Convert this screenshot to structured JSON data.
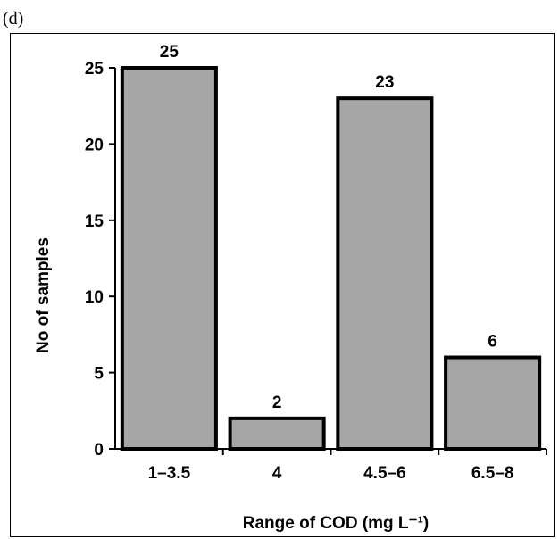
{
  "panel_label": "(d)",
  "chart_data": {
    "type": "bar",
    "categories": [
      "1–3.5",
      "4",
      "4.5–6",
      "6.5–8"
    ],
    "values": [
      25,
      2,
      23,
      6
    ],
    "data_labels": [
      "25",
      "2",
      "23",
      "6"
    ],
    "title": "",
    "xlabel": "Range of COD (mg L⁻¹)",
    "ylabel": "No of samples",
    "ylim": [
      0,
      25
    ],
    "yticks": [
      0,
      5,
      10,
      15,
      20,
      25
    ],
    "ytick_labels": [
      "0",
      "5",
      "10",
      "15",
      "20",
      "25"
    ],
    "grid": false,
    "legend": false,
    "colors": {
      "bar_fill": "#a6a6a6",
      "bar_stroke": "#000000"
    }
  }
}
